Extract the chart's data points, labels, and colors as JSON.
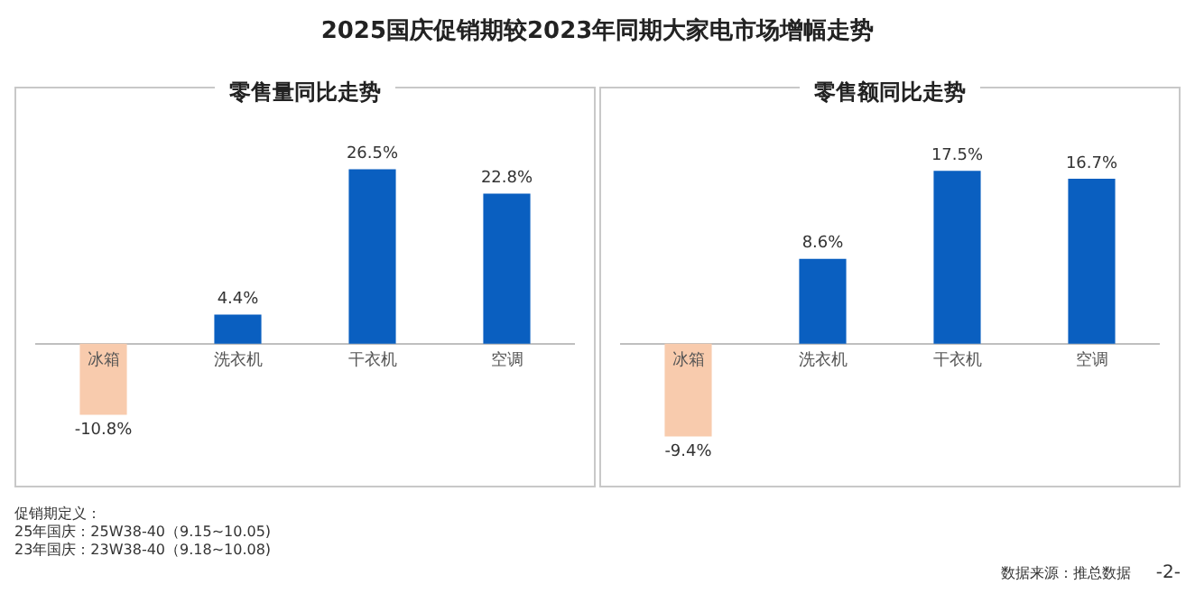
{
  "chart_data": [
    {
      "type": "bar",
      "title": "2025国庆促销期较2023年同期大家电市场增幅走势",
      "subtitle": "零售量同比走势",
      "categories": [
        "冰箱",
        "洗衣机",
        "干衣机",
        "空调"
      ],
      "values": [
        -10.8,
        4.4,
        26.5,
        22.8
      ],
      "colors": [
        "#f8cbad",
        "#0a5fc0",
        "#0a5fc0",
        "#0a5fc0"
      ],
      "value_labels": [
        "-10.8%",
        "4.4%",
        "26.5%",
        "22.8%"
      ],
      "annotations": [
        "促销期定义：",
        "25年国庆：25W38-40（9.15~10.05)",
        "23年国庆：23W38-40（9.18~10.08)"
      ]
    },
    {
      "type": "bar",
      "title": "零售额同比走势",
      "categories": [
        "冰箱",
        "洗衣机",
        "干衣机",
        "空调"
      ],
      "values": [
        -9.4,
        8.6,
        17.5,
        16.7
      ],
      "colors": [
        "#f8cbad",
        "#0a5fc0",
        "#0a5fc0",
        "#0a5fc0"
      ],
      "value_labels": [
        "-9.4%",
        "8.6%",
        "17.5%",
        "16.7%"
      ],
      "annotations": [
        "数据来源：推总数据",
        "-2-"
      ]
    }
  ]
}
